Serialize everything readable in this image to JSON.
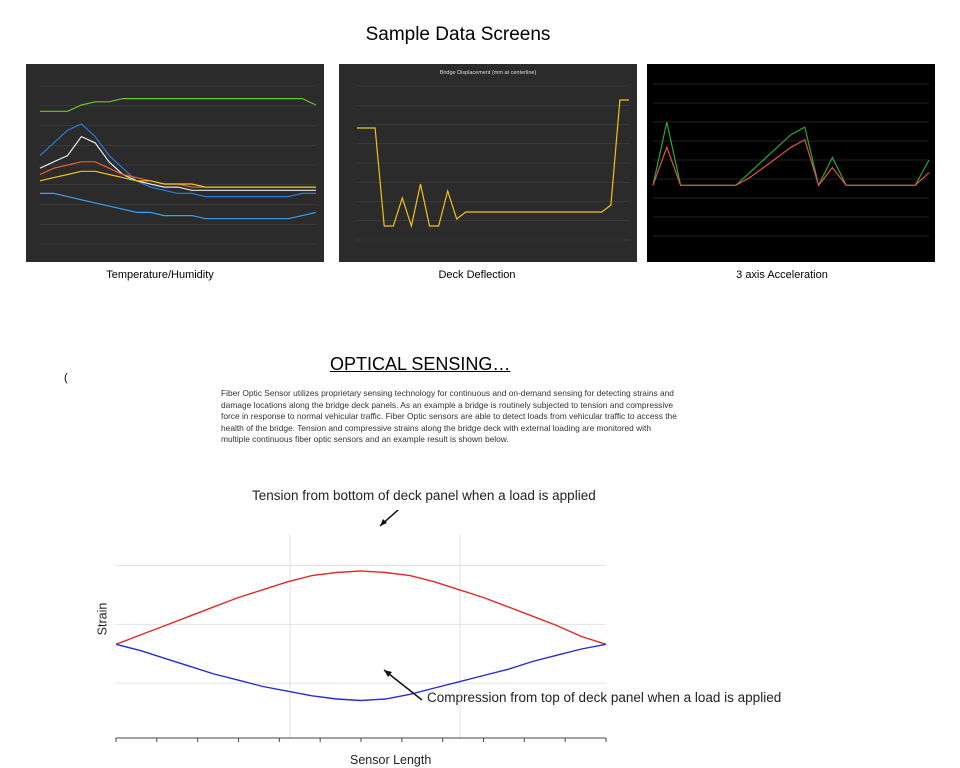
{
  "page": {
    "title": "Sample Data Screens",
    "section_title": "OPTICAL SENSING…",
    "stray_char": "(",
    "paragraph": "Fiber Optic Sensor utilizes proprietary sensing technology for continuous and on-demand sensing for detecting strains and damage locations along the bridge deck panels. As an example a bridge is routinely subjected to tension and compressive force in response to normal vehicular traffic. Fiber Optic sensors are able to detect loads from vehicular traffic to access the health of the bridge. Tension and compressive strains along the bridge deck with external loading are monitored with multiple continuous fiber optic sensors and an example result is shown below."
  },
  "captions": {
    "temperature": "Temperature/Humidity",
    "deflection": "Deck Deflection",
    "acceleration": "3 axis Acceleration"
  },
  "strain_figure": {
    "tension_annotation": "Tension from bottom of deck panel when a load is applied",
    "compression_annotation": "Compression  from top of deck panel when a load is applied",
    "ylabel": "Strain",
    "xlabel": "Sensor Length"
  },
  "chart_data": [
    {
      "type": "line",
      "caption": "Temperature/Humidity",
      "background": "#2b2b2b",
      "x": [
        0,
        1,
        2,
        3,
        4,
        5,
        6,
        7,
        8,
        9,
        10,
        11,
        12,
        13,
        14,
        15,
        16,
        17,
        18,
        19,
        20
      ],
      "series": [
        {
          "color": "#6ac42c",
          "values": [
            62,
            62,
            62,
            64,
            65,
            65,
            66,
            66,
            66,
            66,
            66,
            66,
            66,
            66,
            66,
            66,
            66,
            66,
            66,
            66,
            64
          ]
        },
        {
          "color": "#2a7dd8",
          "values": [
            48,
            52,
            56,
            58,
            54,
            48,
            44,
            40,
            38,
            37,
            36,
            36,
            35,
            35,
            35,
            35,
            35,
            35,
            35,
            36,
            36
          ]
        },
        {
          "color": "#e6e6e6",
          "values": [
            44,
            46,
            48,
            54,
            52,
            46,
            42,
            40,
            39,
            38,
            38,
            37,
            37,
            37,
            37,
            37,
            37,
            37,
            37,
            37,
            37
          ]
        },
        {
          "color": "#e8603a",
          "values": [
            42,
            44,
            45,
            46,
            46,
            44,
            42,
            41,
            40,
            39,
            39,
            38,
            38,
            38,
            38,
            38,
            38,
            38,
            38,
            38,
            38
          ]
        },
        {
          "color": "#f2c21a",
          "values": [
            40,
            41,
            42,
            43,
            43,
            42,
            41,
            40,
            40,
            39,
            39,
            39,
            38,
            38,
            38,
            38,
            38,
            38,
            38,
            38,
            38
          ]
        },
        {
          "color": "#3aa0e8",
          "values": [
            36,
            36,
            35,
            34,
            33,
            32,
            31,
            30,
            30,
            29,
            29,
            29,
            28,
            28,
            28,
            28,
            28,
            28,
            28,
            29,
            30
          ]
        }
      ],
      "ylim": [
        20,
        70
      ]
    },
    {
      "type": "line",
      "caption": "Deck Deflection",
      "title": "Bridge Displacement (mm at centerline)",
      "background": "#2b2b2b",
      "x": [
        0,
        1,
        2,
        3,
        4,
        5,
        6,
        7,
        8,
        9,
        10,
        11,
        12,
        13,
        14,
        15,
        16,
        17,
        18,
        19,
        20,
        21,
        22,
        23,
        24,
        25,
        26,
        27,
        28,
        29,
        30
      ],
      "series": [
        {
          "color": "#f2c21a",
          "values": [
            4,
            4,
            4,
            -10,
            -10,
            -6,
            -10,
            -4,
            -10,
            -10,
            -5,
            -9,
            -8,
            -8,
            -8,
            -8,
            -8,
            -8,
            -8,
            -8,
            -8,
            -8,
            -8,
            -8,
            -8,
            -8,
            -8,
            -8,
            -7,
            8,
            8
          ]
        }
      ],
      "ylim": [
        -12,
        10
      ]
    },
    {
      "type": "line",
      "caption": "3 axis Acceleration",
      "background": "#000000",
      "x": [
        0,
        1,
        2,
        3,
        4,
        5,
        6,
        7,
        8,
        9,
        10,
        11,
        12,
        13,
        14,
        15,
        16,
        17,
        18,
        19,
        20
      ],
      "series": [
        {
          "color": "#2ea82e",
          "values": [
            0,
            2.5,
            0,
            0,
            0,
            0,
            0,
            0.5,
            1,
            1.5,
            2,
            2.3,
            0,
            1.1,
            0,
            0,
            0,
            0,
            0,
            0,
            1
          ]
        },
        {
          "color": "#e05050",
          "values": [
            0,
            1.5,
            0,
            0,
            0,
            0,
            0,
            0.3,
            0.7,
            1.1,
            1.5,
            1.8,
            0,
            0.7,
            0,
            0,
            0,
            0,
            0,
            0,
            0.5
          ]
        }
      ],
      "ylim": [
        -2,
        4
      ]
    },
    {
      "type": "line",
      "xlabel": "Sensor Length",
      "ylabel": "Strain",
      "x": [
        0,
        1,
        2,
        3,
        4,
        5,
        6,
        7,
        8,
        9,
        10,
        11,
        12,
        13,
        14,
        15,
        16,
        17,
        18,
        19,
        20
      ],
      "series": [
        {
          "color": "#e02a2a",
          "values": [
            0,
            0.6,
            1.2,
            1.8,
            2.4,
            3.0,
            3.5,
            4.0,
            4.4,
            4.6,
            4.7,
            4.6,
            4.4,
            4.0,
            3.5,
            3.0,
            2.4,
            1.8,
            1.2,
            0.5,
            0
          ]
        },
        {
          "color": "#2a2ad8",
          "values": [
            0,
            -0.4,
            -0.9,
            -1.4,
            -1.9,
            -2.3,
            -2.7,
            -3.0,
            -3.3,
            -3.5,
            -3.6,
            -3.5,
            -3.2,
            -2.8,
            -2.4,
            -2.0,
            -1.6,
            -1.1,
            -0.7,
            -0.3,
            0
          ]
        }
      ],
      "ylim": [
        -6,
        7
      ]
    }
  ]
}
